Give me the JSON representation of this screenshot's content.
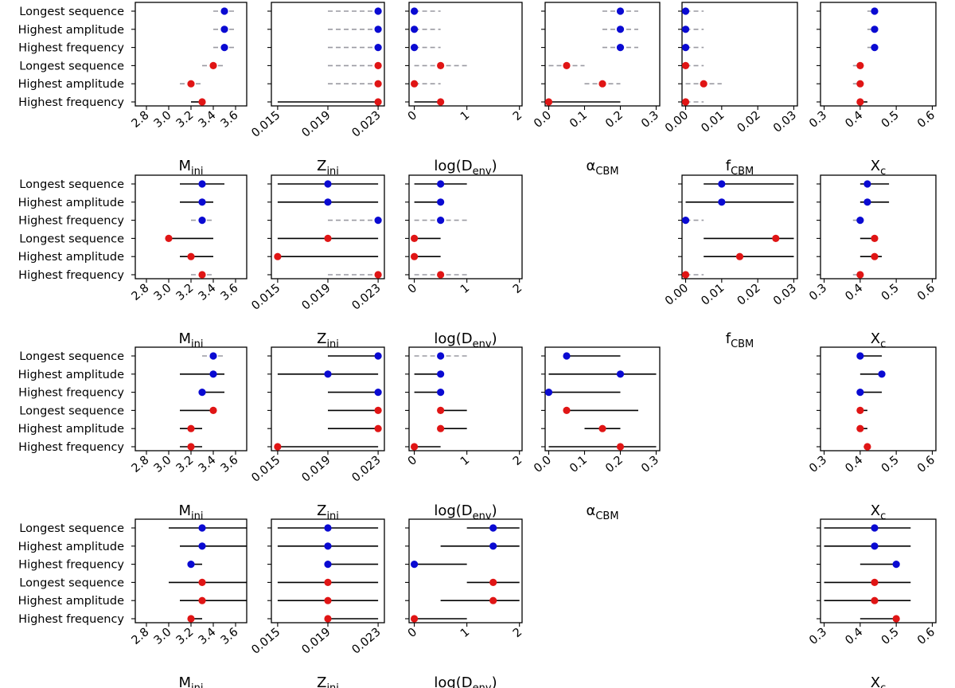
{
  "chart_data": {
    "type": "scatter",
    "description_rows": [
      "Longest sequence",
      "Highest amplitude",
      "Highest frequency",
      "Longest sequence",
      "Highest amplitude",
      "Highest frequency"
    ],
    "series_colors": {
      "first_three_rows": "#0a0ad2",
      "last_three_rows": "#e01515"
    },
    "errorbar_colors": {
      "solid": "#000000",
      "dashed": "#9a9aa2"
    },
    "params": [
      {
        "key": "M",
        "main": "M",
        "sub": "ini",
        "ylim": [
          2.7,
          3.7
        ],
        "ticks": [
          {
            "v": 2.8,
            "t": "2.8"
          },
          {
            "v": 3.0,
            "t": "3.0"
          },
          {
            "v": 3.2,
            "t": "3.2"
          },
          {
            "v": 3.4,
            "t": "3.4"
          },
          {
            "v": 3.6,
            "t": "3.6"
          }
        ]
      },
      {
        "key": "Z",
        "main": "Z",
        "sub": "ini",
        "ylim": [
          0.0145,
          0.0235
        ],
        "ticks": [
          {
            "v": 0.015,
            "t": "0.015"
          },
          {
            "v": 0.019,
            "t": "0.019"
          },
          {
            "v": 0.023,
            "t": "0.023"
          }
        ]
      },
      {
        "key": "D",
        "main": "log(D",
        "sub": "env",
        "tail": ")",
        "ylim": [
          -0.1,
          2.05
        ],
        "ticks": [
          {
            "v": 0,
            "t": "0"
          },
          {
            "v": 1,
            "t": "1"
          },
          {
            "v": 2,
            "t": "2"
          }
        ]
      },
      {
        "key": "a",
        "main": "α",
        "sub": "CBM",
        "ylim": [
          -0.01,
          0.31
        ],
        "ticks": [
          {
            "v": 0.0,
            "t": "0.0"
          },
          {
            "v": 0.1,
            "t": "0.1"
          },
          {
            "v": 0.2,
            "t": "0.2"
          },
          {
            "v": 0.3,
            "t": "0.3"
          }
        ]
      },
      {
        "key": "f",
        "main": "f",
        "sub": "CBM",
        "ylim": [
          -0.001,
          0.031
        ],
        "ticks": [
          {
            "v": 0.0,
            "t": "0.00"
          },
          {
            "v": 0.01,
            "t": "0.01"
          },
          {
            "v": 0.02,
            "t": "0.02"
          },
          {
            "v": 0.03,
            "t": "0.03"
          }
        ]
      },
      {
        "key": "X",
        "main": "X",
        "sub": "c",
        "ylim": [
          0.29,
          0.61
        ],
        "ticks": [
          {
            "v": 0.3,
            "t": "0.3"
          },
          {
            "v": 0.4,
            "t": "0.4"
          },
          {
            "v": 0.5,
            "t": "0.5"
          },
          {
            "v": 0.6,
            "t": "0.6"
          }
        ]
      }
    ],
    "panel_rows": [
      {
        "params": {
          "M": [
            {
              "v": 3.5,
              "lo": 3.4,
              "hi": 3.6,
              "d": 1
            },
            {
              "v": 3.5,
              "lo": 3.4,
              "hi": 3.6,
              "d": 1
            },
            {
              "v": 3.5,
              "lo": 3.4,
              "hi": 3.6,
              "d": 1
            },
            {
              "v": 3.4,
              "lo": 3.3,
              "hi": 3.5,
              "d": 1
            },
            {
              "v": 3.2,
              "lo": 3.1,
              "hi": 3.3,
              "d": 1
            },
            {
              "v": 3.3,
              "lo": 3.2,
              "hi": 3.3,
              "d": 0
            }
          ],
          "Z": [
            {
              "v": 0.023,
              "lo": 0.019,
              "hi": 0.023,
              "d": 1
            },
            {
              "v": 0.023,
              "lo": 0.019,
              "hi": 0.023,
              "d": 1
            },
            {
              "v": 0.023,
              "lo": 0.019,
              "hi": 0.023,
              "d": 1
            },
            {
              "v": 0.023,
              "lo": 0.019,
              "hi": 0.023,
              "d": 1
            },
            {
              "v": 0.023,
              "lo": 0.019,
              "hi": 0.023,
              "d": 1
            },
            {
              "v": 0.023,
              "lo": 0.015,
              "hi": 0.023,
              "d": 0
            }
          ],
          "D": [
            {
              "v": 0,
              "lo": 0,
              "hi": 0.5,
              "d": 1
            },
            {
              "v": 0,
              "lo": 0,
              "hi": 0.5,
              "d": 1
            },
            {
              "v": 0,
              "lo": 0,
              "hi": 0.5,
              "d": 1
            },
            {
              "v": 0.5,
              "lo": 0,
              "hi": 1.0,
              "d": 1
            },
            {
              "v": 0,
              "lo": 0,
              "hi": 0.5,
              "d": 1
            },
            {
              "v": 0.5,
              "lo": 0,
              "hi": 0.5,
              "d": 0
            }
          ],
          "a": [
            {
              "v": 0.2,
              "lo": 0.15,
              "hi": 0.25,
              "d": 1
            },
            {
              "v": 0.2,
              "lo": 0.15,
              "hi": 0.25,
              "d": 1
            },
            {
              "v": 0.2,
              "lo": 0.15,
              "hi": 0.25,
              "d": 1
            },
            {
              "v": 0.05,
              "lo": 0.0,
              "hi": 0.1,
              "d": 1
            },
            {
              "v": 0.15,
              "lo": 0.1,
              "hi": 0.2,
              "d": 1
            },
            {
              "v": 0.0,
              "lo": 0.0,
              "hi": 0.2,
              "d": 0
            }
          ],
          "f": [
            {
              "v": 0.0,
              "lo": 0.0,
              "hi": 0.005,
              "d": 1
            },
            {
              "v": 0.0,
              "lo": 0.0,
              "hi": 0.005,
              "d": 1
            },
            {
              "v": 0.0,
              "lo": 0.0,
              "hi": 0.005,
              "d": 1
            },
            {
              "v": 0.0,
              "lo": 0.0,
              "hi": 0.005,
              "d": 1
            },
            {
              "v": 0.005,
              "lo": 0.0,
              "hi": 0.01,
              "d": 1
            },
            {
              "v": 0.0,
              "lo": 0.0,
              "hi": 0.005,
              "d": 1
            }
          ],
          "X": [
            {
              "v": 0.44,
              "lo": 0.42,
              "hi": 0.45,
              "d": 1
            },
            {
              "v": 0.44,
              "lo": 0.42,
              "hi": 0.45,
              "d": 1
            },
            {
              "v": 0.44,
              "lo": 0.42,
              "hi": 0.45,
              "d": 1
            },
            {
              "v": 0.4,
              "lo": 0.38,
              "hi": 0.41,
              "d": 1
            },
            {
              "v": 0.4,
              "lo": 0.38,
              "hi": 0.41,
              "d": 1
            },
            {
              "v": 0.4,
              "lo": 0.4,
              "hi": 0.42,
              "d": 0
            }
          ]
        }
      },
      {
        "params": {
          "M": [
            {
              "v": 3.3,
              "lo": 3.1,
              "hi": 3.5,
              "d": 0
            },
            {
              "v": 3.3,
              "lo": 3.1,
              "hi": 3.4,
              "d": 0
            },
            {
              "v": 3.3,
              "lo": 3.2,
              "hi": 3.4,
              "d": 1
            },
            {
              "v": 3.0,
              "lo": 3.0,
              "hi": 3.4,
              "d": 0
            },
            {
              "v": 3.2,
              "lo": 3.1,
              "hi": 3.4,
              "d": 0
            },
            {
              "v": 3.3,
              "lo": 3.2,
              "hi": 3.4,
              "d": 1
            }
          ],
          "Z": [
            {
              "v": 0.019,
              "lo": 0.015,
              "hi": 0.023,
              "d": 0
            },
            {
              "v": 0.019,
              "lo": 0.015,
              "hi": 0.023,
              "d": 0
            },
            {
              "v": 0.023,
              "lo": 0.019,
              "hi": 0.023,
              "d": 1
            },
            {
              "v": 0.019,
              "lo": 0.015,
              "hi": 0.023,
              "d": 0
            },
            {
              "v": 0.015,
              "lo": 0.015,
              "hi": 0.023,
              "d": 0
            },
            {
              "v": 0.023,
              "lo": 0.019,
              "hi": 0.023,
              "d": 1
            }
          ],
          "D": [
            {
              "v": 0.5,
              "lo": 0,
              "hi": 1.0,
              "d": 0
            },
            {
              "v": 0.5,
              "lo": 0,
              "hi": 0.5,
              "d": 0
            },
            {
              "v": 0.5,
              "lo": 0,
              "hi": 1.0,
              "d": 1
            },
            {
              "v": 0,
              "lo": 0,
              "hi": 0.5,
              "d": 0
            },
            {
              "v": 0,
              "lo": 0,
              "hi": 0.5,
              "d": 0
            },
            {
              "v": 0.5,
              "lo": 0,
              "hi": 1.0,
              "d": 1
            }
          ],
          "f": [
            {
              "v": 0.01,
              "lo": 0.005,
              "hi": 0.03,
              "d": 0
            },
            {
              "v": 0.01,
              "lo": 0.0,
              "hi": 0.03,
              "d": 0
            },
            {
              "v": 0.0,
              "lo": 0.0,
              "hi": 0.005,
              "d": 1
            },
            {
              "v": 0.025,
              "lo": 0.005,
              "hi": 0.03,
              "d": 0
            },
            {
              "v": 0.015,
              "lo": 0.005,
              "hi": 0.03,
              "d": 0
            },
            {
              "v": 0.0,
              "lo": 0.0,
              "hi": 0.005,
              "d": 1
            }
          ],
          "X": [
            {
              "v": 0.42,
              "lo": 0.4,
              "hi": 0.48,
              "d": 0
            },
            {
              "v": 0.42,
              "lo": 0.4,
              "hi": 0.48,
              "d": 0
            },
            {
              "v": 0.4,
              "lo": 0.38,
              "hi": 0.41,
              "d": 1
            },
            {
              "v": 0.44,
              "lo": 0.4,
              "hi": 0.44,
              "d": 0
            },
            {
              "v": 0.44,
              "lo": 0.4,
              "hi": 0.46,
              "d": 0
            },
            {
              "v": 0.4,
              "lo": 0.38,
              "hi": 0.41,
              "d": 1
            }
          ]
        }
      },
      {
        "params": {
          "M": [
            {
              "v": 3.4,
              "lo": 3.3,
              "hi": 3.5,
              "d": 1
            },
            {
              "v": 3.4,
              "lo": 3.1,
              "hi": 3.5,
              "d": 0
            },
            {
              "v": 3.3,
              "lo": 3.3,
              "hi": 3.5,
              "d": 0
            },
            {
              "v": 3.4,
              "lo": 3.1,
              "hi": 3.4,
              "d": 0
            },
            {
              "v": 3.2,
              "lo": 3.1,
              "hi": 3.3,
              "d": 0
            },
            {
              "v": 3.2,
              "lo": 3.1,
              "hi": 3.3,
              "d": 0
            }
          ],
          "Z": [
            {
              "v": 0.023,
              "lo": 0.019,
              "hi": 0.023,
              "d": 0
            },
            {
              "v": 0.019,
              "lo": 0.015,
              "hi": 0.023,
              "d": 0
            },
            {
              "v": 0.023,
              "lo": 0.019,
              "hi": 0.023,
              "d": 0
            },
            {
              "v": 0.023,
              "lo": 0.019,
              "hi": 0.023,
              "d": 0
            },
            {
              "v": 0.023,
              "lo": 0.019,
              "hi": 0.023,
              "d": 0
            },
            {
              "v": 0.015,
              "lo": 0.015,
              "hi": 0.023,
              "d": 0
            }
          ],
          "D": [
            {
              "v": 0.5,
              "lo": 0,
              "hi": 1.0,
              "d": 1
            },
            {
              "v": 0.5,
              "lo": 0,
              "hi": 0.5,
              "d": 0
            },
            {
              "v": 0.5,
              "lo": 0,
              "hi": 0.5,
              "d": 0
            },
            {
              "v": 0.5,
              "lo": 0.5,
              "hi": 1.0,
              "d": 0
            },
            {
              "v": 0.5,
              "lo": 0.5,
              "hi": 1.0,
              "d": 0
            },
            {
              "v": 0,
              "lo": 0,
              "hi": 0.5,
              "d": 0
            }
          ],
          "a": [
            {
              "v": 0.05,
              "lo": 0.05,
              "hi": 0.2,
              "d": 0
            },
            {
              "v": 0.2,
              "lo": 0.0,
              "hi": 0.3,
              "d": 0
            },
            {
              "v": 0.0,
              "lo": 0.0,
              "hi": 0.2,
              "d": 0
            },
            {
              "v": 0.05,
              "lo": 0.05,
              "hi": 0.25,
              "d": 0
            },
            {
              "v": 0.15,
              "lo": 0.1,
              "hi": 0.2,
              "d": 0
            },
            {
              "v": 0.2,
              "lo": 0.0,
              "hi": 0.3,
              "d": 0
            }
          ],
          "X": [
            {
              "v": 0.4,
              "lo": 0.4,
              "hi": 0.46,
              "d": 0
            },
            {
              "v": 0.46,
              "lo": 0.4,
              "hi": 0.46,
              "d": 0
            },
            {
              "v": 0.4,
              "lo": 0.4,
              "hi": 0.46,
              "d": 0
            },
            {
              "v": 0.4,
              "lo": 0.4,
              "hi": 0.42,
              "d": 0
            },
            {
              "v": 0.4,
              "lo": 0.4,
              "hi": 0.42,
              "d": 0
            },
            {
              "v": 0.42,
              "lo": 0.41,
              "hi": 0.42,
              "d": 0
            }
          ]
        }
      },
      {
        "params": {
          "M": [
            {
              "v": 3.3,
              "lo": 3.0,
              "hi": 3.7,
              "d": 0
            },
            {
              "v": 3.3,
              "lo": 3.1,
              "hi": 3.7,
              "d": 0
            },
            {
              "v": 3.2,
              "lo": 3.2,
              "hi": 3.3,
              "d": 0
            },
            {
              "v": 3.3,
              "lo": 3.0,
              "hi": 3.7,
              "d": 0
            },
            {
              "v": 3.3,
              "lo": 3.1,
              "hi": 3.7,
              "d": 0
            },
            {
              "v": 3.2,
              "lo": 3.2,
              "hi": 3.3,
              "d": 0
            }
          ],
          "Z": [
            {
              "v": 0.019,
              "lo": 0.015,
              "hi": 0.023,
              "d": 0
            },
            {
              "v": 0.019,
              "lo": 0.015,
              "hi": 0.023,
              "d": 0
            },
            {
              "v": 0.019,
              "lo": 0.019,
              "hi": 0.023,
              "d": 0
            },
            {
              "v": 0.019,
              "lo": 0.015,
              "hi": 0.023,
              "d": 0
            },
            {
              "v": 0.019,
              "lo": 0.015,
              "hi": 0.023,
              "d": 0
            },
            {
              "v": 0.019,
              "lo": 0.019,
              "hi": 0.023,
              "d": 0
            }
          ],
          "D": [
            {
              "v": 1.5,
              "lo": 1.0,
              "hi": 2.0,
              "d": 0
            },
            {
              "v": 1.5,
              "lo": 0.5,
              "hi": 2.0,
              "d": 0
            },
            {
              "v": 0,
              "lo": 0,
              "hi": 1.0,
              "d": 0
            },
            {
              "v": 1.5,
              "lo": 1.0,
              "hi": 2.0,
              "d": 0
            },
            {
              "v": 1.5,
              "lo": 0.5,
              "hi": 2.0,
              "d": 0
            },
            {
              "v": 0,
              "lo": 0,
              "hi": 1.0,
              "d": 0
            }
          ],
          "X": [
            {
              "v": 0.44,
              "lo": 0.3,
              "hi": 0.54,
              "d": 0
            },
            {
              "v": 0.44,
              "lo": 0.3,
              "hi": 0.54,
              "d": 0
            },
            {
              "v": 0.5,
              "lo": 0.4,
              "hi": 0.5,
              "d": 0
            },
            {
              "v": 0.44,
              "lo": 0.3,
              "hi": 0.54,
              "d": 0
            },
            {
              "v": 0.44,
              "lo": 0.3,
              "hi": 0.54,
              "d": 0
            },
            {
              "v": 0.5,
              "lo": 0.4,
              "hi": 0.5,
              "d": 0
            }
          ]
        }
      }
    ]
  }
}
